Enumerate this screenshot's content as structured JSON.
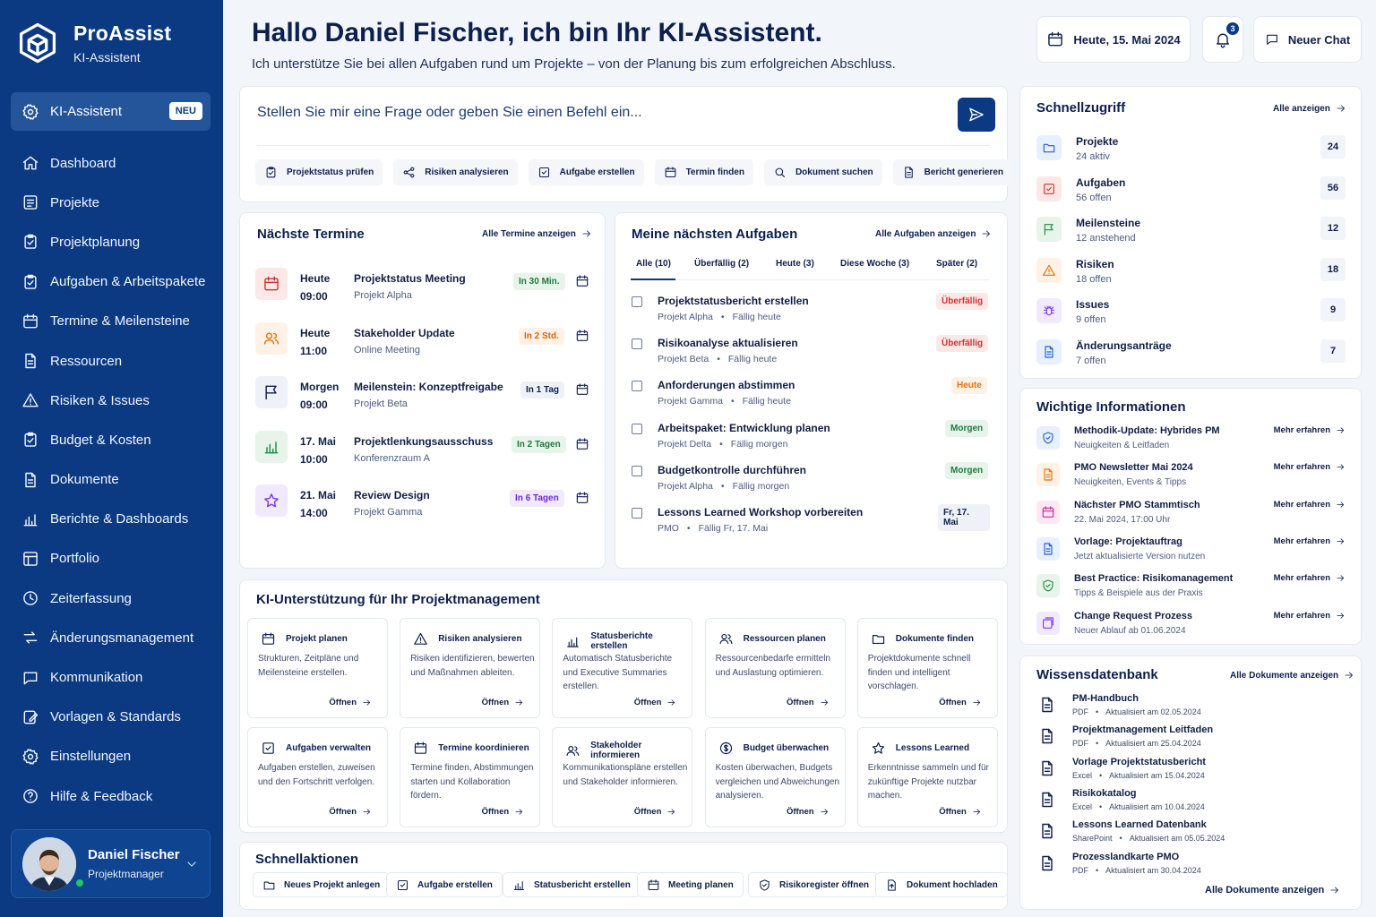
{
  "app": {
    "name": "ProAssist",
    "subtitle": "KI-Assistent"
  },
  "sidebar": {
    "active": {
      "label": "KI-Assistent",
      "badge": "NEU",
      "icon": "gear-icon"
    },
    "items": [
      {
        "label": "Dashboard",
        "icon": "home-icon"
      },
      {
        "label": "Projekte",
        "icon": "project-icon"
      },
      {
        "label": "Projektplanung",
        "icon": "planning-icon"
      },
      {
        "label": "Aufgaben & Arbeitspakete",
        "icon": "tasks-icon"
      },
      {
        "label": "Termine & Meilensteine",
        "icon": "calendar-icon"
      },
      {
        "label": "Ressourcen",
        "icon": "resources-icon"
      },
      {
        "label": "Risiken & Issues",
        "icon": "warning-icon"
      },
      {
        "label": "Budget & Kosten",
        "icon": "budget-icon"
      },
      {
        "label": "Dokumente",
        "icon": "document-icon"
      },
      {
        "label": "Berichte & Dashboards",
        "icon": "chart-icon"
      },
      {
        "label": "Portfolio",
        "icon": "portfolio-icon"
      },
      {
        "label": "Zeiterfassung",
        "icon": "clock-icon"
      },
      {
        "label": "Änderungsmanagement",
        "icon": "change-icon"
      },
      {
        "label": "Kommunikation",
        "icon": "chat-icon"
      },
      {
        "label": "Vorlagen & Standards",
        "icon": "template-icon"
      },
      {
        "label": "Einstellungen",
        "icon": "gear-icon"
      },
      {
        "label": "Hilfe & Feedback",
        "icon": "help-icon"
      }
    ],
    "user": {
      "name": "Daniel Fischer",
      "role": "Projektmanager"
    }
  },
  "header": {
    "greeting": "Hallo Daniel Fischer, ich bin Ihr KI-Assistent.",
    "subtitle": "Ich unterstütze Sie bei allen Aufgaben rund um Projekte – von der Planung bis zum erfolgreichen Abschluss.",
    "date_label": "Heute, 15. Mai 2024",
    "notifications": "3",
    "new_chat": "Neuer Chat"
  },
  "prompt": {
    "placeholder": "Stellen Sie mir eine Frage oder geben Sie einen Befehl ein...",
    "chips": [
      "Projektstatus prüfen",
      "Risiken analysieren",
      "Aufgabe erstellen",
      "Termin finden",
      "Dokument suchen",
      "Bericht generieren"
    ]
  },
  "termine": {
    "title": "Nächste Termine",
    "link": "Alle Termine anzeigen",
    "items": [
      {
        "day": "Heute",
        "time": "09:00",
        "title": "Projektstatus Meeting",
        "sub": "Projekt Alpha",
        "pill": "In 30 Min."
      },
      {
        "day": "Heute",
        "time": "11:00",
        "title": "Stakeholder Update",
        "sub": "Online Meeting",
        "pill": "In 2 Std."
      },
      {
        "day": "Morgen",
        "time": "09:00",
        "title": "Meilenstein: Konzeptfreigabe",
        "sub": "Projekt Beta",
        "pill": "In 1 Tag"
      },
      {
        "day": "17. Mai",
        "time": "10:00",
        "title": "Projektlenkungsausschuss",
        "sub": "Konferenzraum A",
        "pill": "In 2 Tagen"
      },
      {
        "day": "21. Mai",
        "time": "14:00",
        "title": "Review Design",
        "sub": "Projekt Gamma",
        "pill": "In 6 Tagen"
      }
    ]
  },
  "aufgaben": {
    "title": "Meine nächsten Aufgaben",
    "link": "Alle Aufgaben anzeigen",
    "tabs": [
      "Alle (10)",
      "Überfällig (2)",
      "Heute (3)",
      "Diese Woche (3)",
      "Später (2)"
    ],
    "items": [
      {
        "title": "Projektstatusbericht erstellen",
        "project": "Projekt Alpha",
        "due": "Fällig heute",
        "pill": "Überfällig"
      },
      {
        "title": "Risikoanalyse aktualisieren",
        "project": "Projekt Beta",
        "due": "Fällig heute",
        "pill": "Überfällig"
      },
      {
        "title": "Anforderungen abstimmen",
        "project": "Projekt Gamma",
        "due": "Fällig heute",
        "pill": "Heute"
      },
      {
        "title": "Arbeitspaket: Entwicklung planen",
        "project": "Projekt Delta",
        "due": "Fällig morgen",
        "pill": "Morgen"
      },
      {
        "title": "Budgetkontrolle durchführen",
        "project": "Projekt Alpha",
        "due": "Fällig morgen",
        "pill": "Morgen"
      },
      {
        "title": "Lessons Learned Workshop vorbereiten",
        "project": "PMO",
        "due": "Fällig Fr, 17. Mai",
        "pill": "Fr, 17. Mai"
      }
    ]
  },
  "ki_support": {
    "title": "KI-Unterstützung für Ihr Projektmanagement",
    "open_label": "Öffnen",
    "cards": [
      {
        "title": "Projekt planen",
        "desc": "Strukturen, Zeitpläne und Meilensteine erstellen."
      },
      {
        "title": "Risiken analysieren",
        "desc": "Risiken identifizieren, bewerten und Maßnahmen ableiten."
      },
      {
        "title": "Statusberichte erstellen",
        "desc": "Automatisch Statusberichte und Executive Summaries erstellen."
      },
      {
        "title": "Ressourcen planen",
        "desc": "Ressourcenbedarfe ermitteln und Auslastung optimieren."
      },
      {
        "title": "Dokumente finden",
        "desc": "Projektdokumente schnell finden und intelligent vorschlagen."
      },
      {
        "title": "Aufgaben verwalten",
        "desc": "Aufgaben erstellen, zuweisen und den Fortschritt verfolgen."
      },
      {
        "title": "Termine koordinieren",
        "desc": "Termine finden, Abstimmungen starten und Kollaboration fördern."
      },
      {
        "title": "Stakeholder informieren",
        "desc": "Kommunikationspläne erstellen und Stakeholder informieren."
      },
      {
        "title": "Budget überwachen",
        "desc": "Kosten überwachen, Budgets vergleichen und Abweichungen analysieren."
      },
      {
        "title": "Lessons Learned",
        "desc": "Erkenntnisse sammeln und für zukünftige Projekte nutzbar machen."
      }
    ]
  },
  "schnellaktionen": {
    "title": "Schnellaktionen",
    "items": [
      "Neues Projekt anlegen",
      "Aufgabe erstellen",
      "Statusbericht erstellen",
      "Meeting planen",
      "Risikoregister öffnen",
      "Dokument hochladen"
    ]
  },
  "schnellzugriff": {
    "title": "Schnellzugriff",
    "link": "Alle anzeigen",
    "items": [
      {
        "name": "Projekte",
        "sub": "24 aktiv",
        "count": "24"
      },
      {
        "name": "Aufgaben",
        "sub": "56 offen",
        "count": "56"
      },
      {
        "name": "Meilensteine",
        "sub": "12 anstehend",
        "count": "12"
      },
      {
        "name": "Risiken",
        "sub": "18 offen",
        "count": "18"
      },
      {
        "name": "Issues",
        "sub": "9 offen",
        "count": "9"
      },
      {
        "name": "Änderungsanträge",
        "sub": "7 offen",
        "count": "7"
      }
    ]
  },
  "infos": {
    "title": "Wichtige Informationen",
    "more_label": "Mehr erfahren",
    "items": [
      {
        "title": "Methodik-Update: Hybrides PM",
        "sub": "Neuigkeiten & Leitfaden"
      },
      {
        "title": "PMO Newsletter Mai 2024",
        "sub": "Neuigkeiten, Events & Tipps"
      },
      {
        "title": "Nächster PMO Stammtisch",
        "sub": "22. Mai 2024, 17:00 Uhr"
      },
      {
        "title": "Vorlage: Projektauftrag",
        "sub": "Jetzt aktualisierte Version nutzen"
      },
      {
        "title": "Best Practice: Risikomanagement",
        "sub": "Tipps & Beispiele aus der Praxis"
      },
      {
        "title": "Change Request Prozess",
        "sub": "Neuer Ablauf ab 01.06.2024"
      }
    ]
  },
  "wissen": {
    "title": "Wissensdatenbank",
    "link": "Alle Dokumente anzeigen",
    "footer_link": "Alle Dokumente anzeigen",
    "items": [
      {
        "title": "PM-Handbuch",
        "type": "PDF",
        "updated": "Aktualisiert am 02.05.2024"
      },
      {
        "title": "Projektmanagement Leitfaden",
        "type": "PDF",
        "updated": "Aktualisiert am 25.04.2024"
      },
      {
        "title": "Vorlage Projektstatusbericht",
        "type": "Excel",
        "updated": "Aktualisiert am 15.04.2024"
      },
      {
        "title": "Risikokatalog",
        "type": "Excel",
        "updated": "Aktualisiert am 10.04.2024"
      },
      {
        "title": "Lessons Learned Datenbank",
        "type": "SharePoint",
        "updated": "Aktualisiert am 05.05.2024"
      },
      {
        "title": "Prozesslandkarte PMO",
        "type": "PDF",
        "updated": "Aktualisiert am 30.04.2024"
      }
    ]
  },
  "colors": {
    "brand": "#0b3a82",
    "danger": "#d32f2f",
    "warning": "#e8710a",
    "success": "#1f8a44",
    "purple": "#7c3aed"
  }
}
